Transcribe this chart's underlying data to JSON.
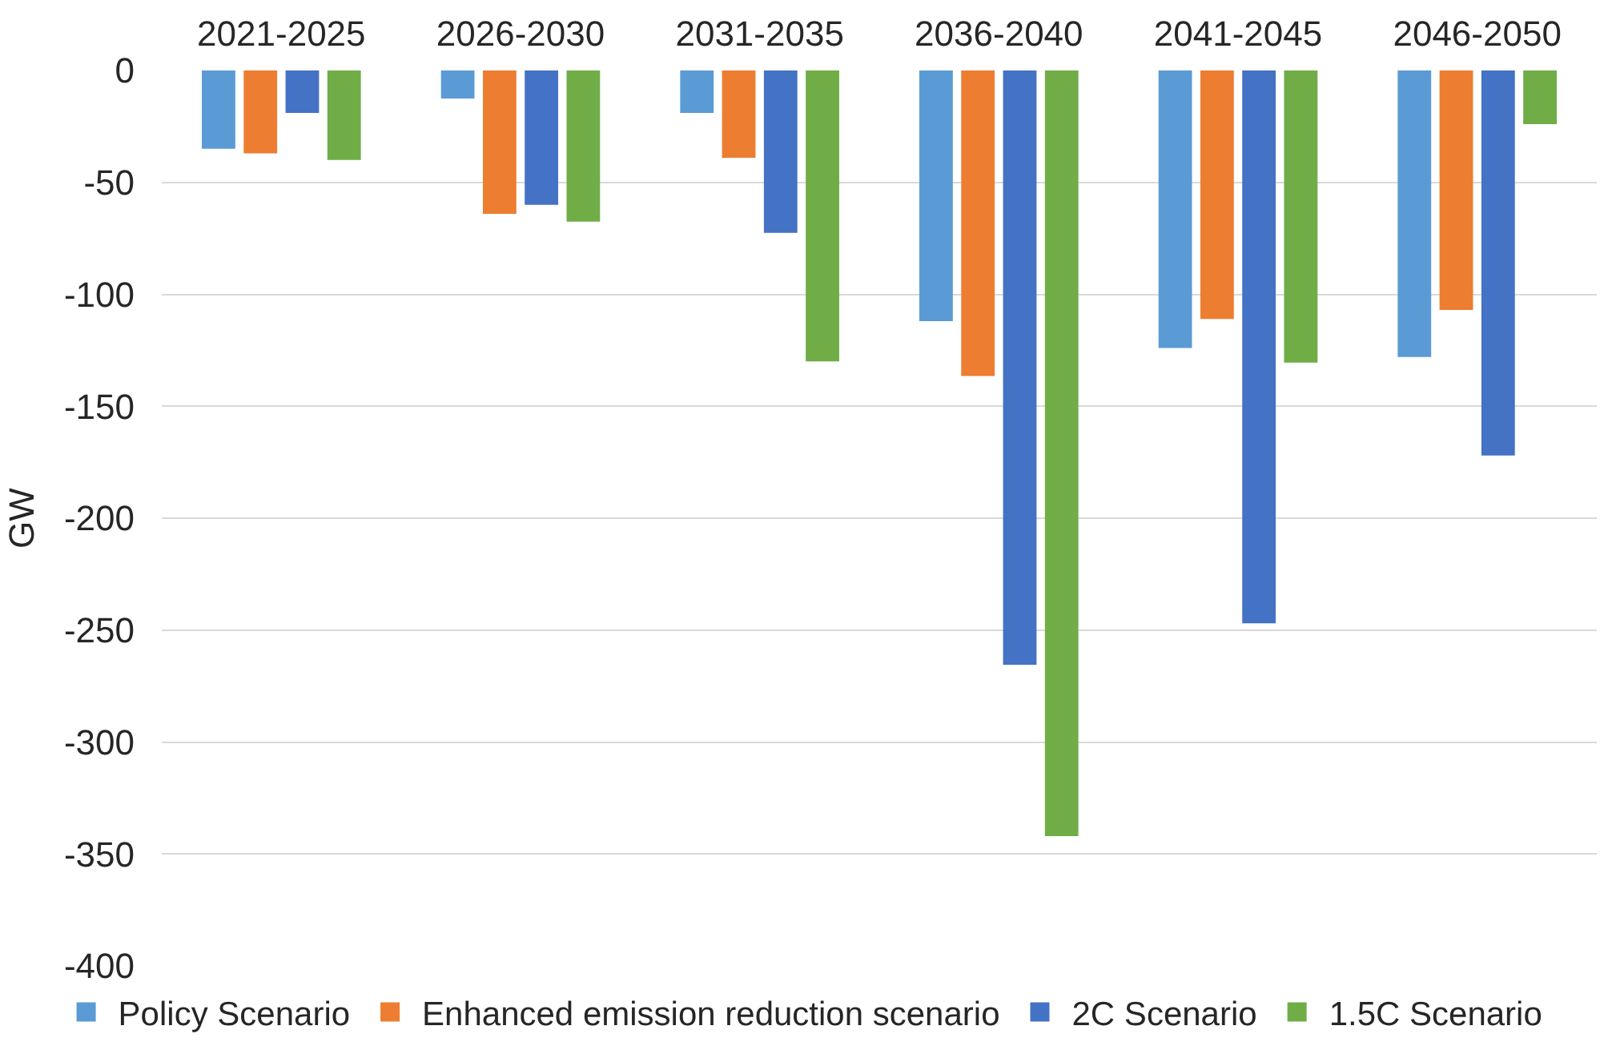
{
  "chart_data": {
    "type": "bar",
    "ylabel": "GW",
    "categories": [
      "2021-2025",
      "2026-2030",
      "2031-2035",
      "2036-2040",
      "2041-2045",
      "2046-2050"
    ],
    "series": [
      {
        "name": "Policy Scenario",
        "color": "#5b9bd5",
        "values": [
          -35,
          -12.5,
          -19,
          -112,
          -124,
          -128
        ]
      },
      {
        "name": "Enhanced emission reduction scenario",
        "color": "#ed7d31",
        "values": [
          -37,
          -64,
          -39,
          -136.5,
          -111,
          -107
        ]
      },
      {
        "name": "2C Scenario",
        "color": "#4472c4",
        "values": [
          -19,
          -60,
          -72.5,
          -265.5,
          -247,
          -172
        ]
      },
      {
        "name": "1.5C Scenario",
        "color": "#70ad47",
        "values": [
          -40,
          -67.5,
          -130,
          -342,
          -130.5,
          -24
        ]
      }
    ],
    "ylim": [
      -400,
      0
    ],
    "yticks": [
      0,
      -50,
      -100,
      -150,
      -200,
      -250,
      -300,
      -350,
      -400
    ],
    "grid": "y",
    "legend": "bottom"
  }
}
